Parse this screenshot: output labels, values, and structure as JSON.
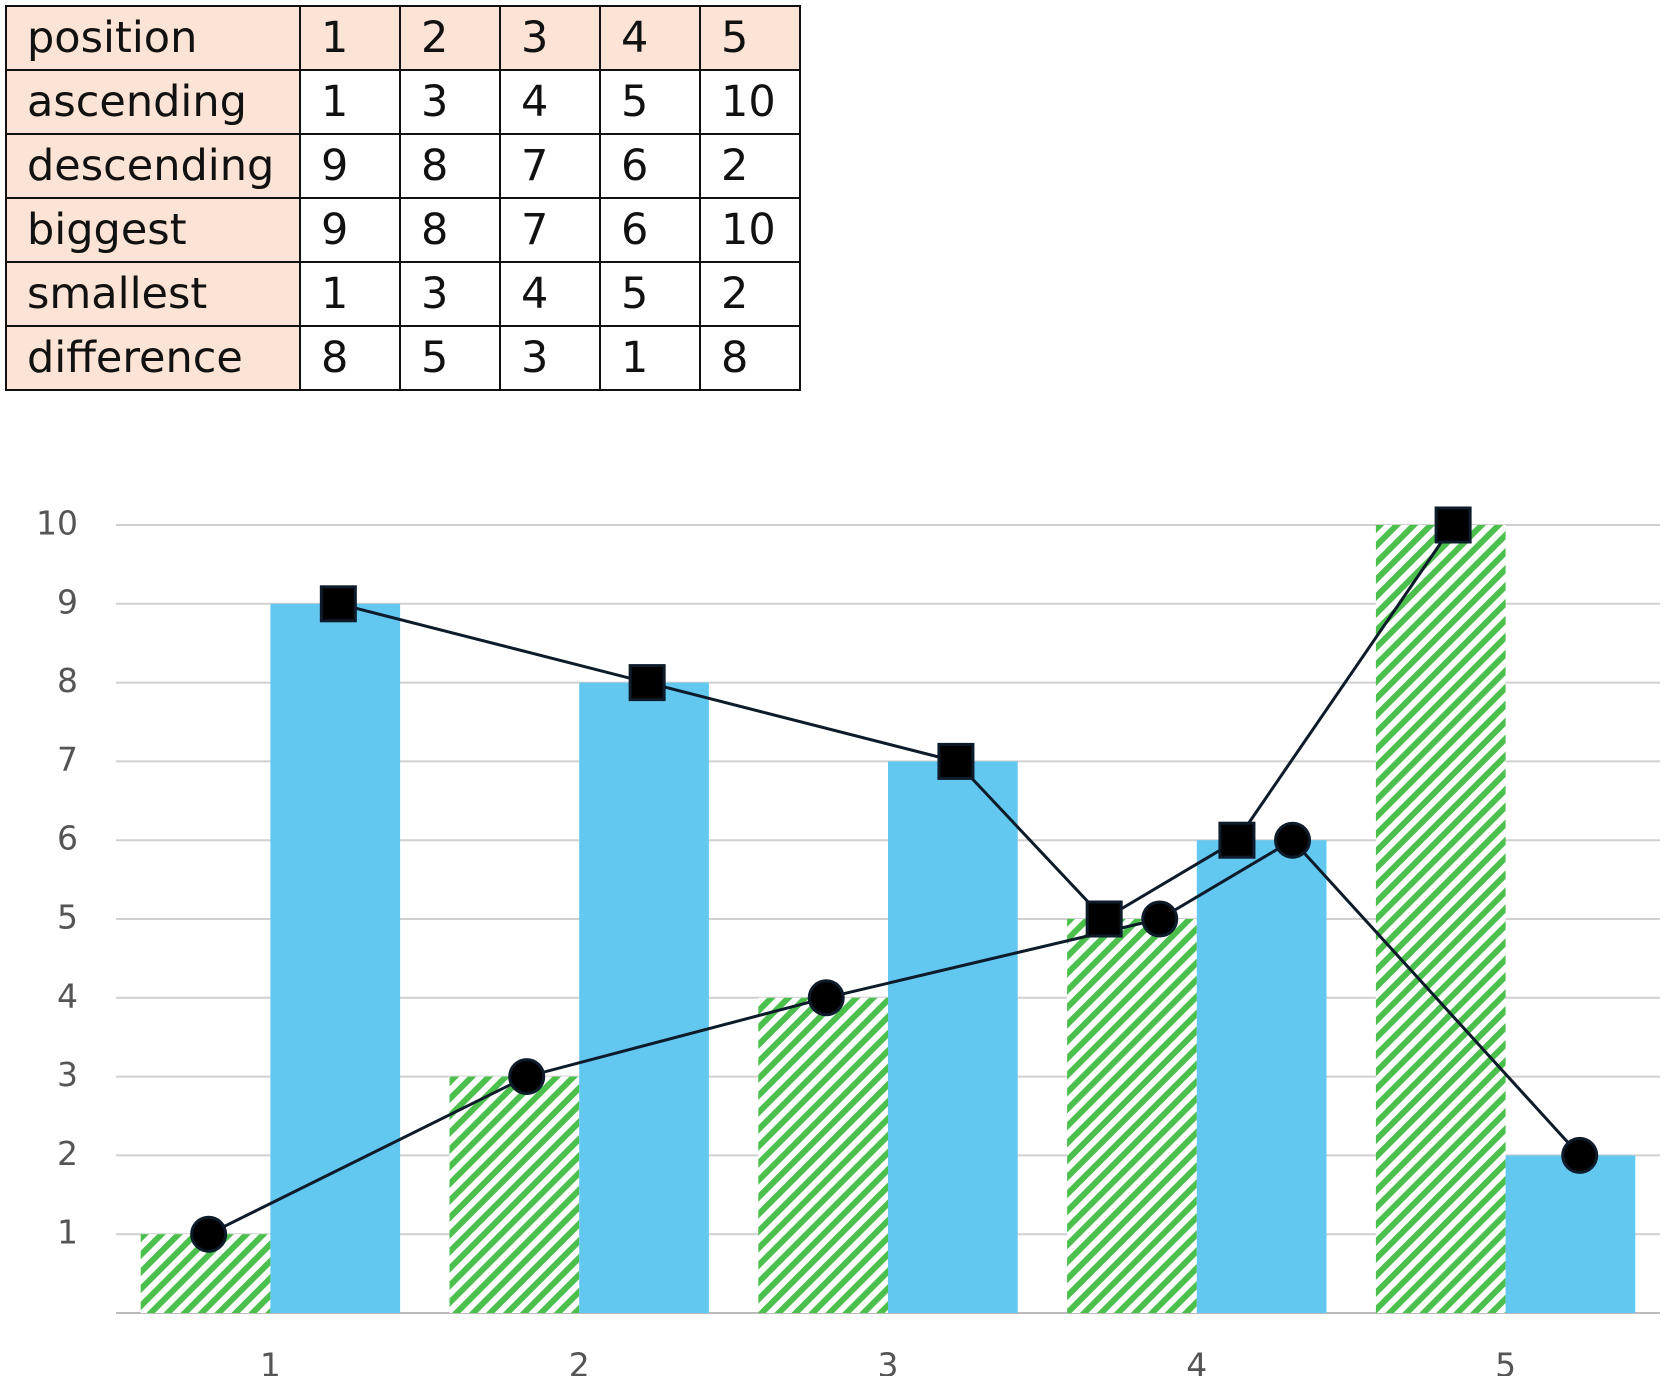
{
  "table": {
    "rows": [
      [
        "position",
        1,
        2,
        3,
        4,
        5
      ],
      [
        "ascending",
        1,
        3,
        4,
        5,
        10
      ],
      [
        "descending",
        9,
        8,
        7,
        6,
        2
      ],
      [
        "biggest",
        9,
        8,
        7,
        6,
        10
      ],
      [
        "smallest",
        1,
        3,
        4,
        5,
        2
      ],
      [
        "difference",
        8,
        5,
        3,
        1,
        8
      ]
    ]
  },
  "chart_data": {
    "type": "bar",
    "categories": [
      "1",
      "2",
      "3",
      "4",
      "5"
    ],
    "series": [
      {
        "color": "#4cc04c",
        "pattern": "hatch",
        "values": [
          1,
          3,
          4,
          5,
          10
        ]
      },
      {
        "color": "#62c8f0",
        "pattern": "solid",
        "values": [
          9,
          8,
          7,
          6,
          2
        ]
      }
    ],
    "lines": [
      {
        "marker": "circle",
        "color": "#0d1b2a",
        "x": [
          0.8,
          1.83,
          2.8,
          3.88,
          4.31,
          5.24
        ],
        "values": [
          1,
          3,
          4,
          5,
          6,
          2
        ]
      },
      {
        "marker": "square",
        "color": "#0d1b2a",
        "x": [
          1.22,
          2.22,
          3.22,
          3.7,
          4.13,
          4.83
        ],
        "values": [
          9,
          8,
          7,
          5,
          6,
          10
        ]
      }
    ],
    "xlim": [
      0.5,
      5.5
    ],
    "ylim": [
      0,
      10
    ],
    "yticks": [
      1,
      2,
      3,
      4,
      5,
      6,
      7,
      8,
      9,
      10
    ],
    "grid": true
  }
}
